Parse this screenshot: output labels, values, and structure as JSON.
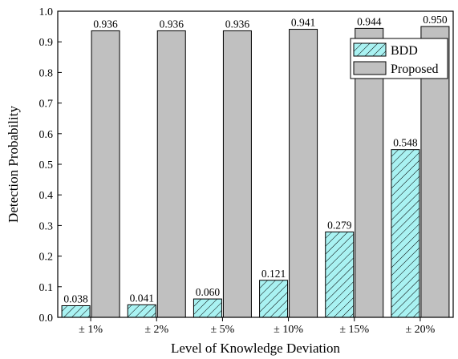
{
  "chart_data": {
    "type": "bar",
    "categories": [
      "± 1%",
      "± 2%",
      "± 5%",
      "± 10%",
      "± 15%",
      "± 20%"
    ],
    "series": [
      {
        "name": "BDD",
        "values": [
          0.038,
          0.041,
          0.06,
          0.121,
          0.279,
          0.548
        ],
        "labels": [
          "0.038",
          "0.041",
          "0.060",
          "0.121",
          "0.279",
          "0.548"
        ],
        "color": "#a9f2f2",
        "pattern": "diagonal-hatch"
      },
      {
        "name": "Proposed",
        "values": [
          0.936,
          0.936,
          0.936,
          0.941,
          0.944,
          0.95
        ],
        "labels": [
          "0.936",
          "0.936",
          "0.936",
          "0.941",
          "0.944",
          "0.950"
        ],
        "color": "#c0c0c0",
        "pattern": "solid"
      }
    ],
    "xlabel": "Level of Knowledge Deviation",
    "ylabel": "Detection Probability",
    "ylim": [
      0,
      1.0
    ],
    "yticks": [
      "0.0",
      "0.1",
      "0.2",
      "0.3",
      "0.4",
      "0.5",
      "0.6",
      "0.7",
      "0.8",
      "0.9",
      "1.0"
    ],
    "grid": false,
    "legend_position": "top-right"
  }
}
